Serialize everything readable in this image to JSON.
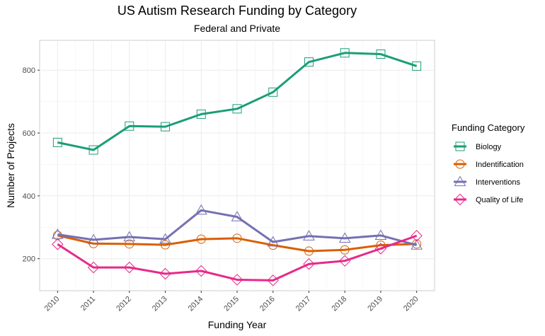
{
  "chart_data": {
    "type": "line",
    "title": "US Autism Research Funding by Category",
    "subtitle": "Federal and Private",
    "xlabel": "Funding Year",
    "ylabel": "Number of Projects",
    "x": [
      2010,
      2011,
      2012,
      2013,
      2014,
      2015,
      2016,
      2017,
      2018,
      2019,
      2020
    ],
    "x_tick_labels": [
      "2010",
      "2011",
      "2012",
      "2013",
      "2014",
      "2015",
      "2016",
      "2017",
      "2018",
      "2019",
      "2020"
    ],
    "ylim": [
      98,
      895
    ],
    "y_ticks": [
      200,
      400,
      600,
      800
    ],
    "y_tick_labels": [
      "200",
      "400",
      "600",
      "800"
    ],
    "grid": true,
    "legend": {
      "title": "Funding Category",
      "position": "right"
    },
    "series": [
      {
        "name": "Biology",
        "color": "#1b9e77",
        "marker": "square",
        "values": [
          570,
          546,
          622,
          620,
          660,
          677,
          730,
          826,
          855,
          851,
          813
        ]
      },
      {
        "name": "Indentification",
        "color": "#d95f02",
        "marker": "circle",
        "values": [
          274,
          248,
          247,
          244,
          262,
          265,
          243,
          224,
          228,
          243,
          247
        ]
      },
      {
        "name": "Interventions",
        "color": "#7570b3",
        "marker": "triangle",
        "values": [
          277,
          260,
          269,
          262,
          354,
          333,
          253,
          272,
          265,
          274,
          243
        ]
      },
      {
        "name": "Quality of Life",
        "color": "#e7298a",
        "marker": "diamond",
        "values": [
          246,
          172,
          172,
          152,
          161,
          133,
          131,
          183,
          193,
          232,
          273
        ]
      }
    ]
  }
}
